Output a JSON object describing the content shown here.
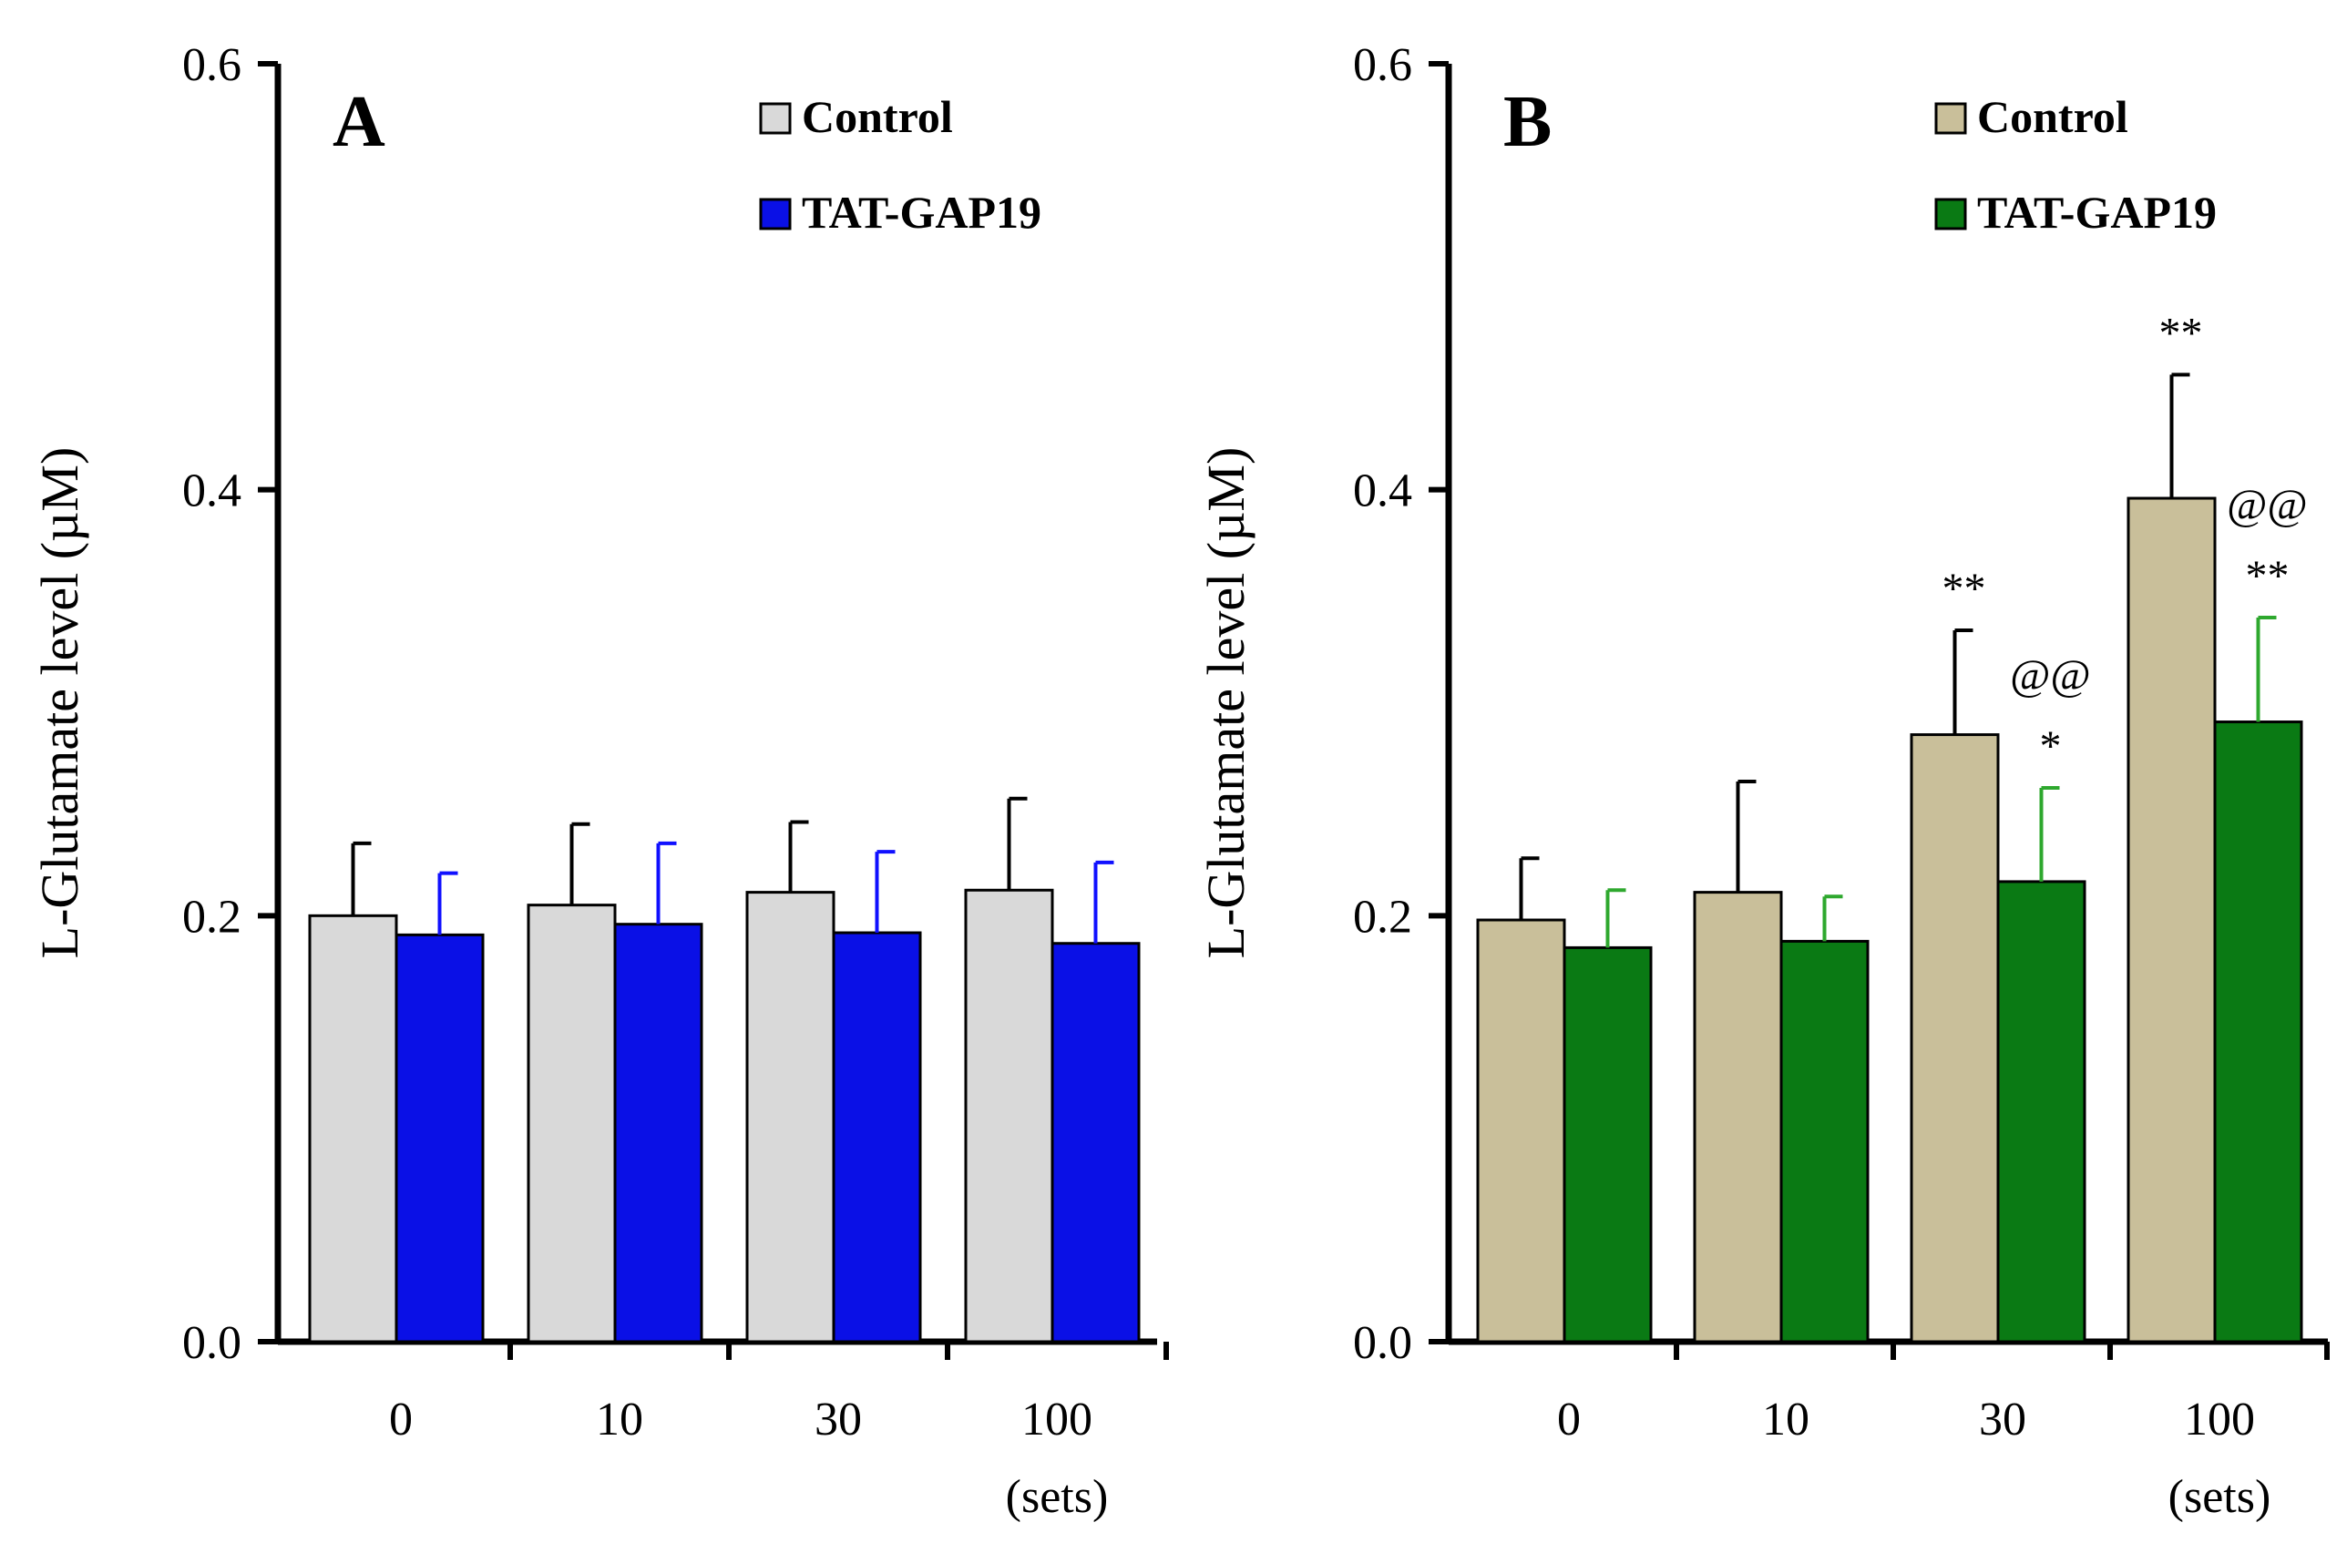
{
  "figure": {
    "ylabel": "L-Glutamate  level (µM)",
    "x_unit": "(sets)",
    "y_ticks": [
      "0.0",
      "0.2",
      "0.4",
      "0.6"
    ]
  },
  "chart_data": [
    {
      "type": "bar",
      "panel": "A",
      "categories": [
        "0",
        "10",
        "30",
        "100"
      ],
      "x_unit": "(sets)",
      "ylabel": "L-Glutamate  level (µM)",
      "ylim": [
        0,
        0.6
      ],
      "yticks": [
        0.0,
        0.2,
        0.4,
        0.6
      ],
      "legend_position": "top-right",
      "series": [
        {
          "name": "Control",
          "color": "#d9d9d9",
          "error_color": "#000000",
          "values": [
            0.2,
            0.205,
            0.211,
            0.212
          ],
          "errors": [
            0.034,
            0.038,
            0.033,
            0.043
          ],
          "annotations": [
            "",
            "",
            "",
            ""
          ]
        },
        {
          "name": "TAT-GAP19",
          "color": "#0a10e6",
          "error_color": "#1010ff",
          "values": [
            0.191,
            0.196,
            0.192,
            0.187
          ],
          "errors": [
            0.029,
            0.038,
            0.038,
            0.038
          ],
          "annotations": [
            "",
            "",
            "",
            ""
          ]
        }
      ]
    },
    {
      "type": "bar",
      "panel": "B",
      "categories": [
        "0",
        "10",
        "30",
        "100"
      ],
      "x_unit": "(sets)",
      "ylabel": "L-Glutamate  level (µM)",
      "ylim": [
        0,
        0.6
      ],
      "yticks": [
        0.0,
        0.2,
        0.4,
        0.6
      ],
      "legend_position": "top-right",
      "series": [
        {
          "name": "Control",
          "color": "#c9bf9a",
          "error_color": "#000000",
          "values": [
            0.198,
            0.211,
            0.285,
            0.396
          ],
          "errors": [
            0.029,
            0.052,
            0.049,
            0.058
          ],
          "annotations": [
            "",
            "",
            "**",
            "**"
          ]
        },
        {
          "name": "TAT-GAP19",
          "color": "#0a7a14",
          "error_color": "#2ea82e",
          "values": [
            0.185,
            0.188,
            0.216,
            0.291
          ],
          "errors": [
            0.027,
            0.021,
            0.044,
            0.049
          ],
          "annotations": [
            "",
            "",
            "@@\n*",
            "@@\n**"
          ]
        }
      ]
    }
  ]
}
